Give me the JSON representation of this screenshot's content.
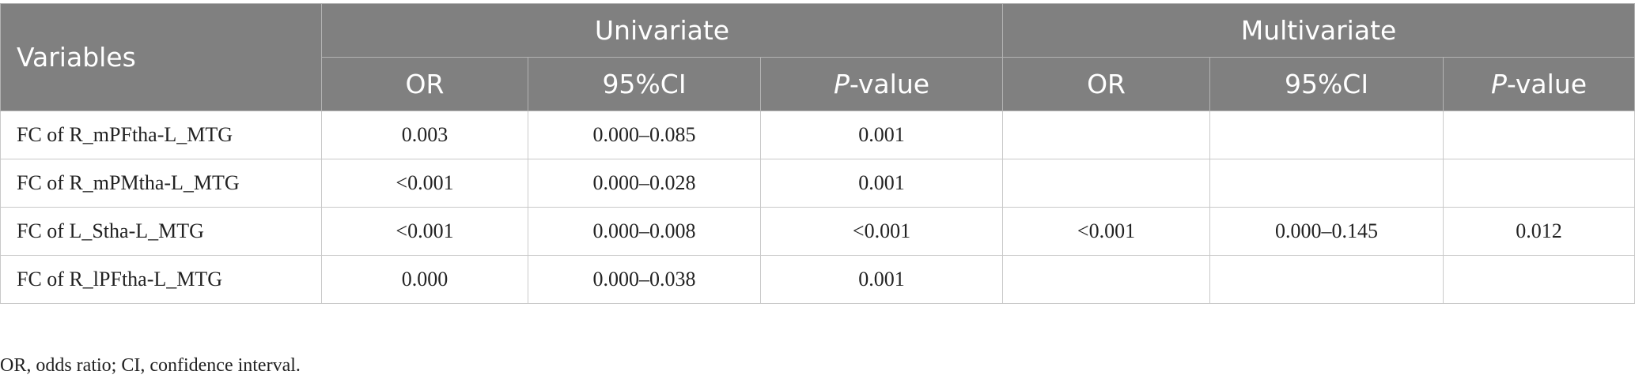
{
  "header": {
    "variables": "Variables",
    "groups": [
      "Univariate",
      "Multivariate"
    ],
    "sub": [
      {
        "main": "OR",
        "suffix": ""
      },
      {
        "main": "95%CI",
        "suffix": ""
      },
      {
        "main": "P",
        "suffix": "-value"
      },
      {
        "main": "OR",
        "suffix": ""
      },
      {
        "main": "95%CI",
        "suffix": ""
      },
      {
        "main": "P",
        "suffix": "-value"
      }
    ]
  },
  "rows": [
    {
      "variable": "FC of R_mPFtha-L_MTG",
      "values": [
        "0.003",
        "0.000–0.085",
        "0.001",
        "",
        "",
        ""
      ]
    },
    {
      "variable": "FC of R_mPMtha-L_MTG",
      "values": [
        "<0.001",
        "0.000–0.028",
        "0.001",
        "",
        "",
        ""
      ]
    },
    {
      "variable": "FC of L_Stha-L_MTG",
      "values": [
        "<0.001",
        "0.000–0.008",
        "<0.001",
        "<0.001",
        "0.000–0.145",
        "0.012"
      ]
    },
    {
      "variable": "FC of R_lPFtha-L_MTG",
      "values": [
        "0.000",
        "0.000–0.038",
        "0.001",
        "",
        "",
        ""
      ]
    }
  ],
  "footnote": "OR, odds ratio; CI, confidence interval."
}
